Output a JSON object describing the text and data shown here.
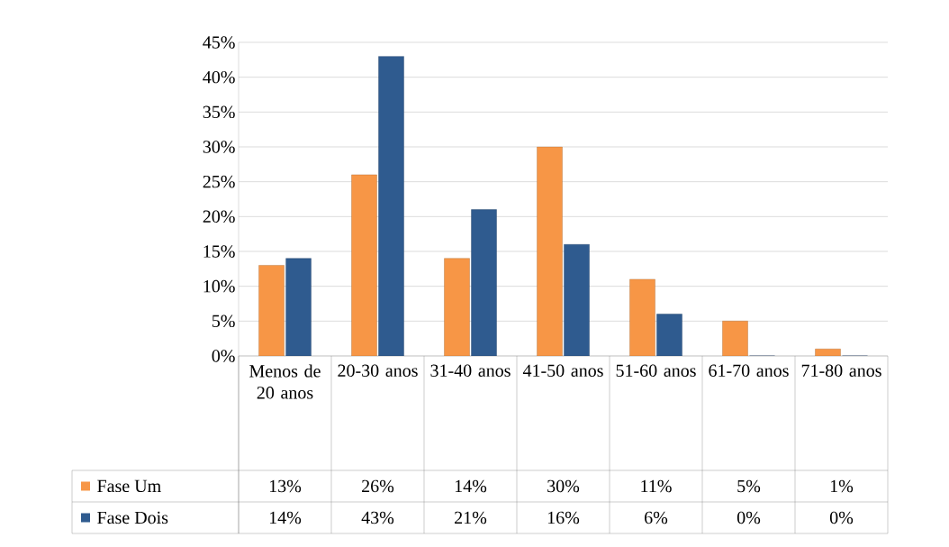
{
  "chart_data": {
    "type": "bar",
    "categories": [
      "Menos de 20 anos",
      "20-30 anos",
      "31-40 anos",
      "41-50 anos",
      "51-60 anos",
      "61-70 anos",
      "71-80 anos"
    ],
    "series": [
      {
        "name": "Fase Um",
        "color": "#f79646",
        "values": [
          13,
          26,
          14,
          30,
          11,
          5,
          1
        ],
        "value_labels": [
          "13%",
          "26%",
          "14%",
          "30%",
          "11%",
          "5%",
          "1%"
        ]
      },
      {
        "name": "Fase Dois",
        "color": "#2f5b8f",
        "values": [
          14,
          43,
          21,
          16,
          6,
          0,
          0
        ],
        "value_labels": [
          "14%",
          "43%",
          "21%",
          "16%",
          "6%",
          "0%",
          "0%"
        ]
      }
    ],
    "ylim": [
      0,
      45
    ],
    "yticks": [
      {
        "value": 0,
        "label": "0%"
      },
      {
        "value": 5,
        "label": "5%"
      },
      {
        "value": 10,
        "label": "10%"
      },
      {
        "value": 15,
        "label": "15%"
      },
      {
        "value": 20,
        "label": "20%"
      },
      {
        "value": 25,
        "label": "25%"
      },
      {
        "value": 30,
        "label": "30%"
      },
      {
        "value": 35,
        "label": "35%"
      },
      {
        "value": 40,
        "label": "40%"
      },
      {
        "value": 45,
        "label": "45%"
      }
    ],
    "grid": "y",
    "legend": "bottom"
  }
}
